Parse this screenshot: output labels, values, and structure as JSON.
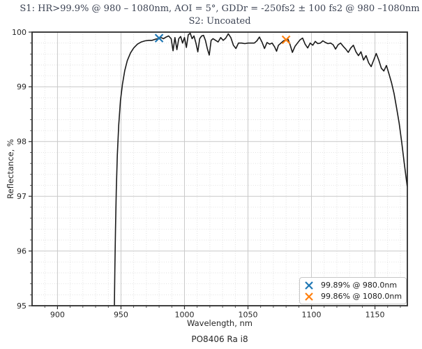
{
  "title": {
    "line1": "S1: HR>99.9% @ 980 – 1080nm, AOI = 5°, GDDr = -250fs2 ± 100 fs2 @ 980 –1080nm",
    "line2": "S2: Uncoated"
  },
  "caption": "PO8406 Ra i8",
  "chart_data": {
    "type": "line",
    "title": "S1: HR>99.9% @ 980 – 1080nm, AOI = 5°, GDDr = -250fs2 ± 100 fs2 @ 980 –1080nm / S2: Uncoated",
    "xlabel": "Wavelength, nm",
    "ylabel": "Reflectance, %",
    "xlim": [
      880,
      1175.5
    ],
    "ylim": [
      95,
      100
    ],
    "grid": true,
    "x_major_ticks": [
      900,
      950,
      1000,
      1050,
      1100,
      1150
    ],
    "x_minor_step": 10,
    "y_major_ticks": [
      95,
      96,
      97,
      98,
      99,
      100
    ],
    "y_minor_step": 0.2,
    "legend": {
      "position": "lower right",
      "entries": [
        {
          "label": "99.89% @ 980.0nm",
          "color": "#1f77b4",
          "marker": "x"
        },
        {
          "label": "99.86% @ 1080.0nm",
          "color": "#ff7f0e",
          "marker": "x"
        }
      ]
    },
    "markers": [
      {
        "x": 980,
        "y": 99.89,
        "color": "#1f77b4",
        "name": "marker-980nm"
      },
      {
        "x": 1080,
        "y": 99.86,
        "color": "#ff7f0e",
        "name": "marker-1080nm"
      }
    ],
    "series": [
      {
        "name": "S1 reflectance",
        "color": "#1a1a1a",
        "points": [
          [
            944.8,
            95.0
          ],
          [
            945.2,
            95.7
          ],
          [
            945.7,
            96.4
          ],
          [
            946.3,
            97.1
          ],
          [
            947.1,
            97.75
          ],
          [
            948.2,
            98.3
          ],
          [
            949.6,
            98.75
          ],
          [
            951.2,
            99.05
          ],
          [
            953,
            99.3
          ],
          [
            955,
            99.48
          ],
          [
            957.5,
            99.62
          ],
          [
            960,
            99.71
          ],
          [
            963,
            99.78
          ],
          [
            966,
            99.82
          ],
          [
            969,
            99.84
          ],
          [
            972,
            99.85
          ],
          [
            974.5,
            99.85
          ],
          [
            977,
            99.87
          ],
          [
            979,
            99.88
          ],
          [
            980,
            99.89
          ],
          [
            981.5,
            99.9
          ],
          [
            983.5,
            99.88
          ],
          [
            985.5,
            99.91
          ],
          [
            987.5,
            99.93
          ],
          [
            989.5,
            99.88
          ],
          [
            991,
            99.66
          ],
          [
            992.5,
            99.9
          ],
          [
            994,
            99.68
          ],
          [
            995.5,
            99.88
          ],
          [
            997,
            99.92
          ],
          [
            998.5,
            99.8
          ],
          [
            1000,
            99.9
          ],
          [
            1001.5,
            99.72
          ],
          [
            1003,
            99.95
          ],
          [
            1004.5,
            99.98
          ],
          [
            1006,
            99.88
          ],
          [
            1007.5,
            99.93
          ],
          [
            1009,
            99.8
          ],
          [
            1010.5,
            99.64
          ],
          [
            1012,
            99.88
          ],
          [
            1013.5,
            99.93
          ],
          [
            1015,
            99.94
          ],
          [
            1016.5,
            99.85
          ],
          [
            1018,
            99.7
          ],
          [
            1019.5,
            99.58
          ],
          [
            1021,
            99.85
          ],
          [
            1022.5,
            99.88
          ],
          [
            1024.5,
            99.85
          ],
          [
            1026.5,
            99.82
          ],
          [
            1028.5,
            99.9
          ],
          [
            1030.5,
            99.85
          ],
          [
            1032.5,
            99.89
          ],
          [
            1034.5,
            99.97
          ],
          [
            1036.5,
            99.9
          ],
          [
            1038.5,
            99.76
          ],
          [
            1040.5,
            99.7
          ],
          [
            1042.5,
            99.8
          ],
          [
            1045,
            99.8
          ],
          [
            1047.5,
            99.79
          ],
          [
            1050,
            99.8
          ],
          [
            1052.5,
            99.8
          ],
          [
            1055,
            99.8
          ],
          [
            1057,
            99.84
          ],
          [
            1059,
            99.91
          ],
          [
            1061,
            99.82
          ],
          [
            1063,
            99.7
          ],
          [
            1065,
            99.81
          ],
          [
            1067,
            99.78
          ],
          [
            1069,
            99.8
          ],
          [
            1071,
            99.73
          ],
          [
            1072.5,
            99.65
          ],
          [
            1074,
            99.76
          ],
          [
            1076,
            99.8
          ],
          [
            1078,
            99.84
          ],
          [
            1080,
            99.86
          ],
          [
            1081.5,
            99.87
          ],
          [
            1083,
            99.78
          ],
          [
            1085,
            99.63
          ],
          [
            1087,
            99.74
          ],
          [
            1089,
            99.8
          ],
          [
            1091,
            99.86
          ],
          [
            1093,
            99.89
          ],
          [
            1095,
            99.78
          ],
          [
            1097,
            99.71
          ],
          [
            1099,
            99.8
          ],
          [
            1101,
            99.76
          ],
          [
            1103,
            99.83
          ],
          [
            1105,
            99.79
          ],
          [
            1107,
            99.8
          ],
          [
            1109,
            99.84
          ],
          [
            1111,
            99.81
          ],
          [
            1113,
            99.79
          ],
          [
            1115,
            99.8
          ],
          [
            1117,
            99.77
          ],
          [
            1119,
            99.69
          ],
          [
            1121,
            99.77
          ],
          [
            1123,
            99.8
          ],
          [
            1125,
            99.74
          ],
          [
            1127,
            99.69
          ],
          [
            1129,
            99.63
          ],
          [
            1131,
            99.71
          ],
          [
            1133,
            99.76
          ],
          [
            1135,
            99.64
          ],
          [
            1137,
            99.57
          ],
          [
            1139,
            99.64
          ],
          [
            1141,
            99.49
          ],
          [
            1143,
            99.57
          ],
          [
            1145,
            99.44
          ],
          [
            1147,
            99.37
          ],
          [
            1149,
            99.49
          ],
          [
            1151,
            99.61
          ],
          [
            1153,
            99.49
          ],
          [
            1155,
            99.34
          ],
          [
            1157,
            99.29
          ],
          [
            1159,
            99.39
          ],
          [
            1161,
            99.24
          ],
          [
            1163,
            99.08
          ],
          [
            1165,
            98.88
          ],
          [
            1167,
            98.62
          ],
          [
            1169,
            98.34
          ],
          [
            1171,
            98.0
          ],
          [
            1173,
            97.62
          ],
          [
            1175.4,
            97.18
          ]
        ]
      }
    ]
  }
}
